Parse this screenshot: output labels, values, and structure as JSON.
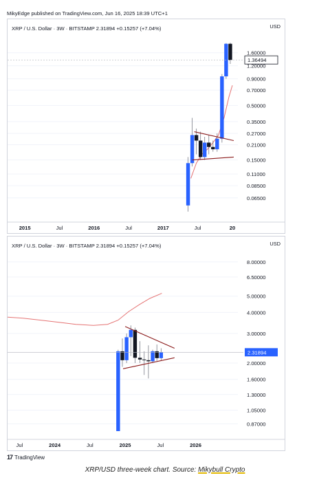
{
  "header": "MikyEdge published on TradingView.com, Jun 16, 2025 18:39 UTC+1",
  "colors": {
    "up": "#2962ff",
    "down": "#131722",
    "ma": "#e57373",
    "trend": "#8b1a1a",
    "grid": "#f0f3fa",
    "border": "#d1d4dc"
  },
  "chart_data": [
    {
      "type": "candlestick",
      "legend": "XRP / U.S. Dollar · 3W · BITSTAMP  2.31894  +0.15257 (+7.04%)",
      "currency": "USD",
      "scale": "log",
      "ylim": [
        0.045,
        2.4
      ],
      "xlim": [
        2014.75,
        2018.08
      ],
      "y_ticks": [
        {
          "v": 1.6,
          "label": "1.60000"
        },
        {
          "v": 1.2,
          "label": "1.20000"
        },
        {
          "v": 0.9,
          "label": "0.90000"
        },
        {
          "v": 0.7,
          "label": "0.70000"
        },
        {
          "v": 0.5,
          "label": "0.50000"
        },
        {
          "v": 0.35,
          "label": "0.35000"
        },
        {
          "v": 0.27,
          "label": "0.27000"
        },
        {
          "v": 0.21,
          "label": "0.21000"
        },
        {
          "v": 0.15,
          "label": "0.15000"
        },
        {
          "v": 0.11,
          "label": "0.11000"
        },
        {
          "v": 0.085,
          "label": "0.08500"
        },
        {
          "v": 0.065,
          "label": "0.06500"
        }
      ],
      "x_ticks": [
        {
          "t": 2015.0,
          "label": "2015",
          "bold": true
        },
        {
          "t": 2015.5,
          "label": "Jul",
          "bold": false
        },
        {
          "t": 2016.0,
          "label": "2016",
          "bold": true
        },
        {
          "t": 2016.5,
          "label": "Jul",
          "bold": false
        },
        {
          "t": 2017.0,
          "label": "2017",
          "bold": true
        },
        {
          "t": 2017.5,
          "label": "Jul",
          "bold": false
        },
        {
          "t": 2018.0,
          "label": "20",
          "bold": true
        }
      ],
      "last_price": {
        "v": 1.36494,
        "label": "1.36494"
      },
      "candles": [
        {
          "t": 2017.36,
          "o": 0.055,
          "h": 0.16,
          "l": 0.048,
          "c": 0.14
        },
        {
          "t": 2017.42,
          "o": 0.14,
          "h": 0.38,
          "l": 0.13,
          "c": 0.26
        },
        {
          "t": 2017.48,
          "o": 0.26,
          "h": 0.3,
          "l": 0.17,
          "c": 0.23
        },
        {
          "t": 2017.54,
          "o": 0.23,
          "h": 0.28,
          "l": 0.15,
          "c": 0.16
        },
        {
          "t": 2017.6,
          "o": 0.16,
          "h": 0.25,
          "l": 0.15,
          "c": 0.22
        },
        {
          "t": 2017.66,
          "o": 0.22,
          "h": 0.26,
          "l": 0.17,
          "c": 0.2
        },
        {
          "t": 2017.72,
          "o": 0.2,
          "h": 0.23,
          "l": 0.18,
          "c": 0.19
        },
        {
          "t": 2017.78,
          "o": 0.19,
          "h": 0.27,
          "l": 0.18,
          "c": 0.24
        },
        {
          "t": 2017.85,
          "o": 0.24,
          "h": 1.0,
          "l": 0.22,
          "c": 0.95
        },
        {
          "t": 2017.91,
          "o": 0.95,
          "h": 1.98,
          "l": 0.9,
          "c": 1.95
        },
        {
          "t": 2017.97,
          "o": 1.95,
          "h": 2.0,
          "l": 1.25,
          "c": 1.36
        }
      ],
      "ma": [
        [
          2017.4,
          0.1
        ],
        [
          2017.48,
          0.14
        ],
        [
          2017.56,
          0.17
        ],
        [
          2017.64,
          0.19
        ],
        [
          2017.72,
          0.22
        ],
        [
          2017.8,
          0.26
        ],
        [
          2017.88,
          0.38
        ],
        [
          2017.95,
          0.6
        ],
        [
          2018.0,
          0.78
        ]
      ],
      "trendlines": [
        [
          [
            2017.45,
            0.28
          ],
          [
            2018.02,
            0.23
          ]
        ],
        [
          [
            2017.42,
            0.15
          ],
          [
            2018.02,
            0.16
          ]
        ]
      ]
    },
    {
      "type": "candlestick",
      "legend": "XRP / U.S. Dollar · 3W · BITSTAMP  2.31894  +0.15257 (+7.04%)",
      "currency": "USD",
      "scale": "log",
      "ylim": [
        0.78,
        9.2
      ],
      "xlim": [
        2023.33,
        2026.6
      ],
      "y_ticks": [
        {
          "v": 8.0,
          "label": "8.00000"
        },
        {
          "v": 6.5,
          "label": "6.50000"
        },
        {
          "v": 5.0,
          "label": "5.00000"
        },
        {
          "v": 4.0,
          "label": "4.00000"
        },
        {
          "v": 3.0,
          "label": "3.00000"
        },
        {
          "v": 2.0,
          "label": "2.00000"
        },
        {
          "v": 1.6,
          "label": "1.60000"
        },
        {
          "v": 1.3,
          "label": "1.30000"
        },
        {
          "v": 1.05,
          "label": "1.05000"
        },
        {
          "v": 0.87,
          "label": "0.87000"
        }
      ],
      "x_ticks": [
        {
          "t": 2023.5,
          "label": "Jul",
          "bold": false
        },
        {
          "t": 2024.0,
          "label": "2024",
          "bold": true
        },
        {
          "t": 2024.5,
          "label": "Jul",
          "bold": false
        },
        {
          "t": 2025.0,
          "label": "2025",
          "bold": true
        },
        {
          "t": 2025.5,
          "label": "Jul",
          "bold": false
        },
        {
          "t": 2026.0,
          "label": "2026",
          "bold": true
        }
      ],
      "last_price": {
        "v": 2.31894,
        "label": "2.31894"
      },
      "candles": [
        {
          "t": 2024.9,
          "o": 0.75,
          "h": 2.4,
          "l": 0.6,
          "c": 2.35
        },
        {
          "t": 2024.96,
          "o": 2.35,
          "h": 2.8,
          "l": 1.9,
          "c": 2.08
        },
        {
          "t": 2025.02,
          "o": 2.08,
          "h": 3.0,
          "l": 2.0,
          "c": 2.85
        },
        {
          "t": 2025.08,
          "o": 2.85,
          "h": 3.35,
          "l": 2.2,
          "c": 3.15
        },
        {
          "t": 2025.14,
          "o": 3.15,
          "h": 3.25,
          "l": 2.0,
          "c": 2.15
        },
        {
          "t": 2025.21,
          "o": 2.15,
          "h": 2.7,
          "l": 2.0,
          "c": 2.1
        },
        {
          "t": 2025.27,
          "o": 2.1,
          "h": 2.35,
          "l": 1.7,
          "c": 2.08
        },
        {
          "t": 2025.33,
          "o": 2.08,
          "h": 2.55,
          "l": 1.62,
          "c": 2.05
        },
        {
          "t": 2025.39,
          "o": 2.05,
          "h": 2.4,
          "l": 2.0,
          "c": 2.35
        },
        {
          "t": 2025.45,
          "o": 2.35,
          "h": 2.58,
          "l": 2.06,
          "c": 2.14
        },
        {
          "t": 2025.51,
          "o": 2.14,
          "h": 2.45,
          "l": 2.08,
          "c": 2.32
        }
      ],
      "ma": [
        [
          2023.33,
          3.75
        ],
        [
          2023.55,
          3.7
        ],
        [
          2023.8,
          3.6
        ],
        [
          2024.05,
          3.5
        ],
        [
          2024.3,
          3.4
        ],
        [
          2024.55,
          3.35
        ],
        [
          2024.75,
          3.4
        ],
        [
          2024.9,
          3.6
        ],
        [
          2025.05,
          4.05
        ],
        [
          2025.2,
          4.45
        ],
        [
          2025.35,
          4.85
        ],
        [
          2025.52,
          5.2
        ]
      ],
      "trendlines": [
        [
          [
            2025.0,
            3.3
          ],
          [
            2025.7,
            2.45
          ]
        ],
        [
          [
            2024.97,
            1.85
          ],
          [
            2025.7,
            2.15
          ]
        ]
      ]
    }
  ],
  "footer_logo": "17",
  "footer_brand": "TradingView",
  "caption": {
    "prefix": "XRP/USD three-week chart. Source: ",
    "source": "Mikybull Crypto"
  }
}
